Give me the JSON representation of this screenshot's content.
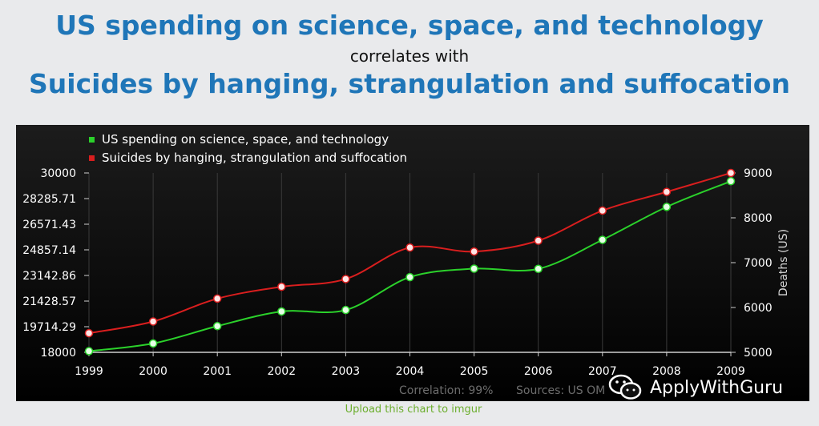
{
  "header": {
    "title_line1": "US spending on science, space, and technology",
    "title_line2": "correlates with",
    "title_line3": "Suicides by hanging, strangulation and suffocation"
  },
  "chart_data": {
    "type": "line",
    "x": [
      1999,
      2000,
      2001,
      2002,
      2003,
      2004,
      2005,
      2006,
      2007,
      2008,
      2009
    ],
    "series": [
      {
        "name": "US spending on science, space, and technology",
        "axis": "left",
        "color": "#2bd12b",
        "values": [
          18079,
          18594,
          19753,
          20734,
          20831,
          23029,
          23597,
          23584,
          25525,
          27731,
          29449
        ]
      },
      {
        "name": "Suicides by hanging, strangulation and suffocation",
        "axis": "right",
        "color": "#d91e1e",
        "values": [
          5427,
          5688,
          6198,
          6462,
          6635,
          7336,
          7248,
          7491,
          8161,
          8578,
          9000
        ]
      }
    ],
    "left_axis": {
      "ylim": [
        18000,
        30000
      ],
      "tick_labels": [
        "18000",
        "19714.29",
        "21428.57",
        "23142.86",
        "24857.14",
        "26571.43",
        "28285.71",
        "30000"
      ]
    },
    "right_axis": {
      "label": "Deaths (US)",
      "ylim": [
        5000,
        9000
      ],
      "tick_labels": [
        "5000",
        "6000",
        "7000",
        "8000",
        "9000"
      ]
    },
    "x_tick_labels": [
      "1999",
      "2000",
      "2001",
      "2002",
      "2003",
      "2004",
      "2005",
      "2006",
      "2007",
      "2008",
      "2009"
    ],
    "grid": "vertical",
    "legend_position": "top-left",
    "footer": {
      "correlation": "Correlation: 99%",
      "sources": "Sources: US OM"
    }
  },
  "watermark_text": "ApplyWithGuru",
  "upload_link": "Upload this chart to imgur",
  "colors": {
    "title": "#1f76b8",
    "chart_background": "#0d0d0d",
    "link": "#6cae2e"
  }
}
